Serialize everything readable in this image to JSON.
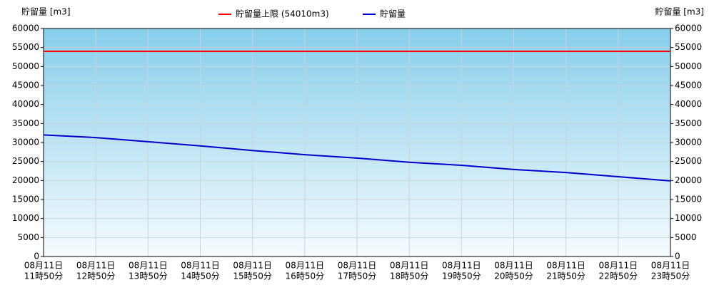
{
  "chart_data": {
    "type": "line",
    "y_label": "貯留量 [m3]",
    "y2_label": "貯留量 [m3]",
    "categories": [
      [
        "08月11日",
        "11時50分"
      ],
      [
        "08月11日",
        "12時50分"
      ],
      [
        "08月11日",
        "13時50分"
      ],
      [
        "08月11日",
        "14時50分"
      ],
      [
        "08月11日",
        "15時50分"
      ],
      [
        "08月11日",
        "16時50分"
      ],
      [
        "08月11日",
        "17時50分"
      ],
      [
        "08月11日",
        "18時50分"
      ],
      [
        "08月11日",
        "19時50分"
      ],
      [
        "08月11日",
        "20時50分"
      ],
      [
        "08月11日",
        "21時50分"
      ],
      [
        "08月11日",
        "22時50分"
      ],
      [
        "08月11日",
        "23時50分"
      ]
    ],
    "limit": {
      "name": "貯留量上限 (54010m3)",
      "color": "#ff0000",
      "value": 54010
    },
    "series": [
      {
        "name": "貯留量",
        "color": "#0000cc",
        "values": [
          32000,
          31300,
          30200,
          29100,
          27900,
          26800,
          25900,
          24800,
          24000,
          22900,
          22100,
          21000,
          19900
        ]
      }
    ],
    "ylim": [
      0,
      60000
    ],
    "yticks": [
      0,
      5000,
      10000,
      15000,
      20000,
      25000,
      30000,
      35000,
      40000,
      45000,
      50000,
      55000,
      60000
    ],
    "y2lim": [
      0,
      60000
    ],
    "y2ticks": [
      0,
      5000,
      10000,
      15000,
      20000,
      25000,
      30000,
      35000,
      40000,
      45000,
      50000,
      55000,
      60000
    ],
    "grid": true
  }
}
